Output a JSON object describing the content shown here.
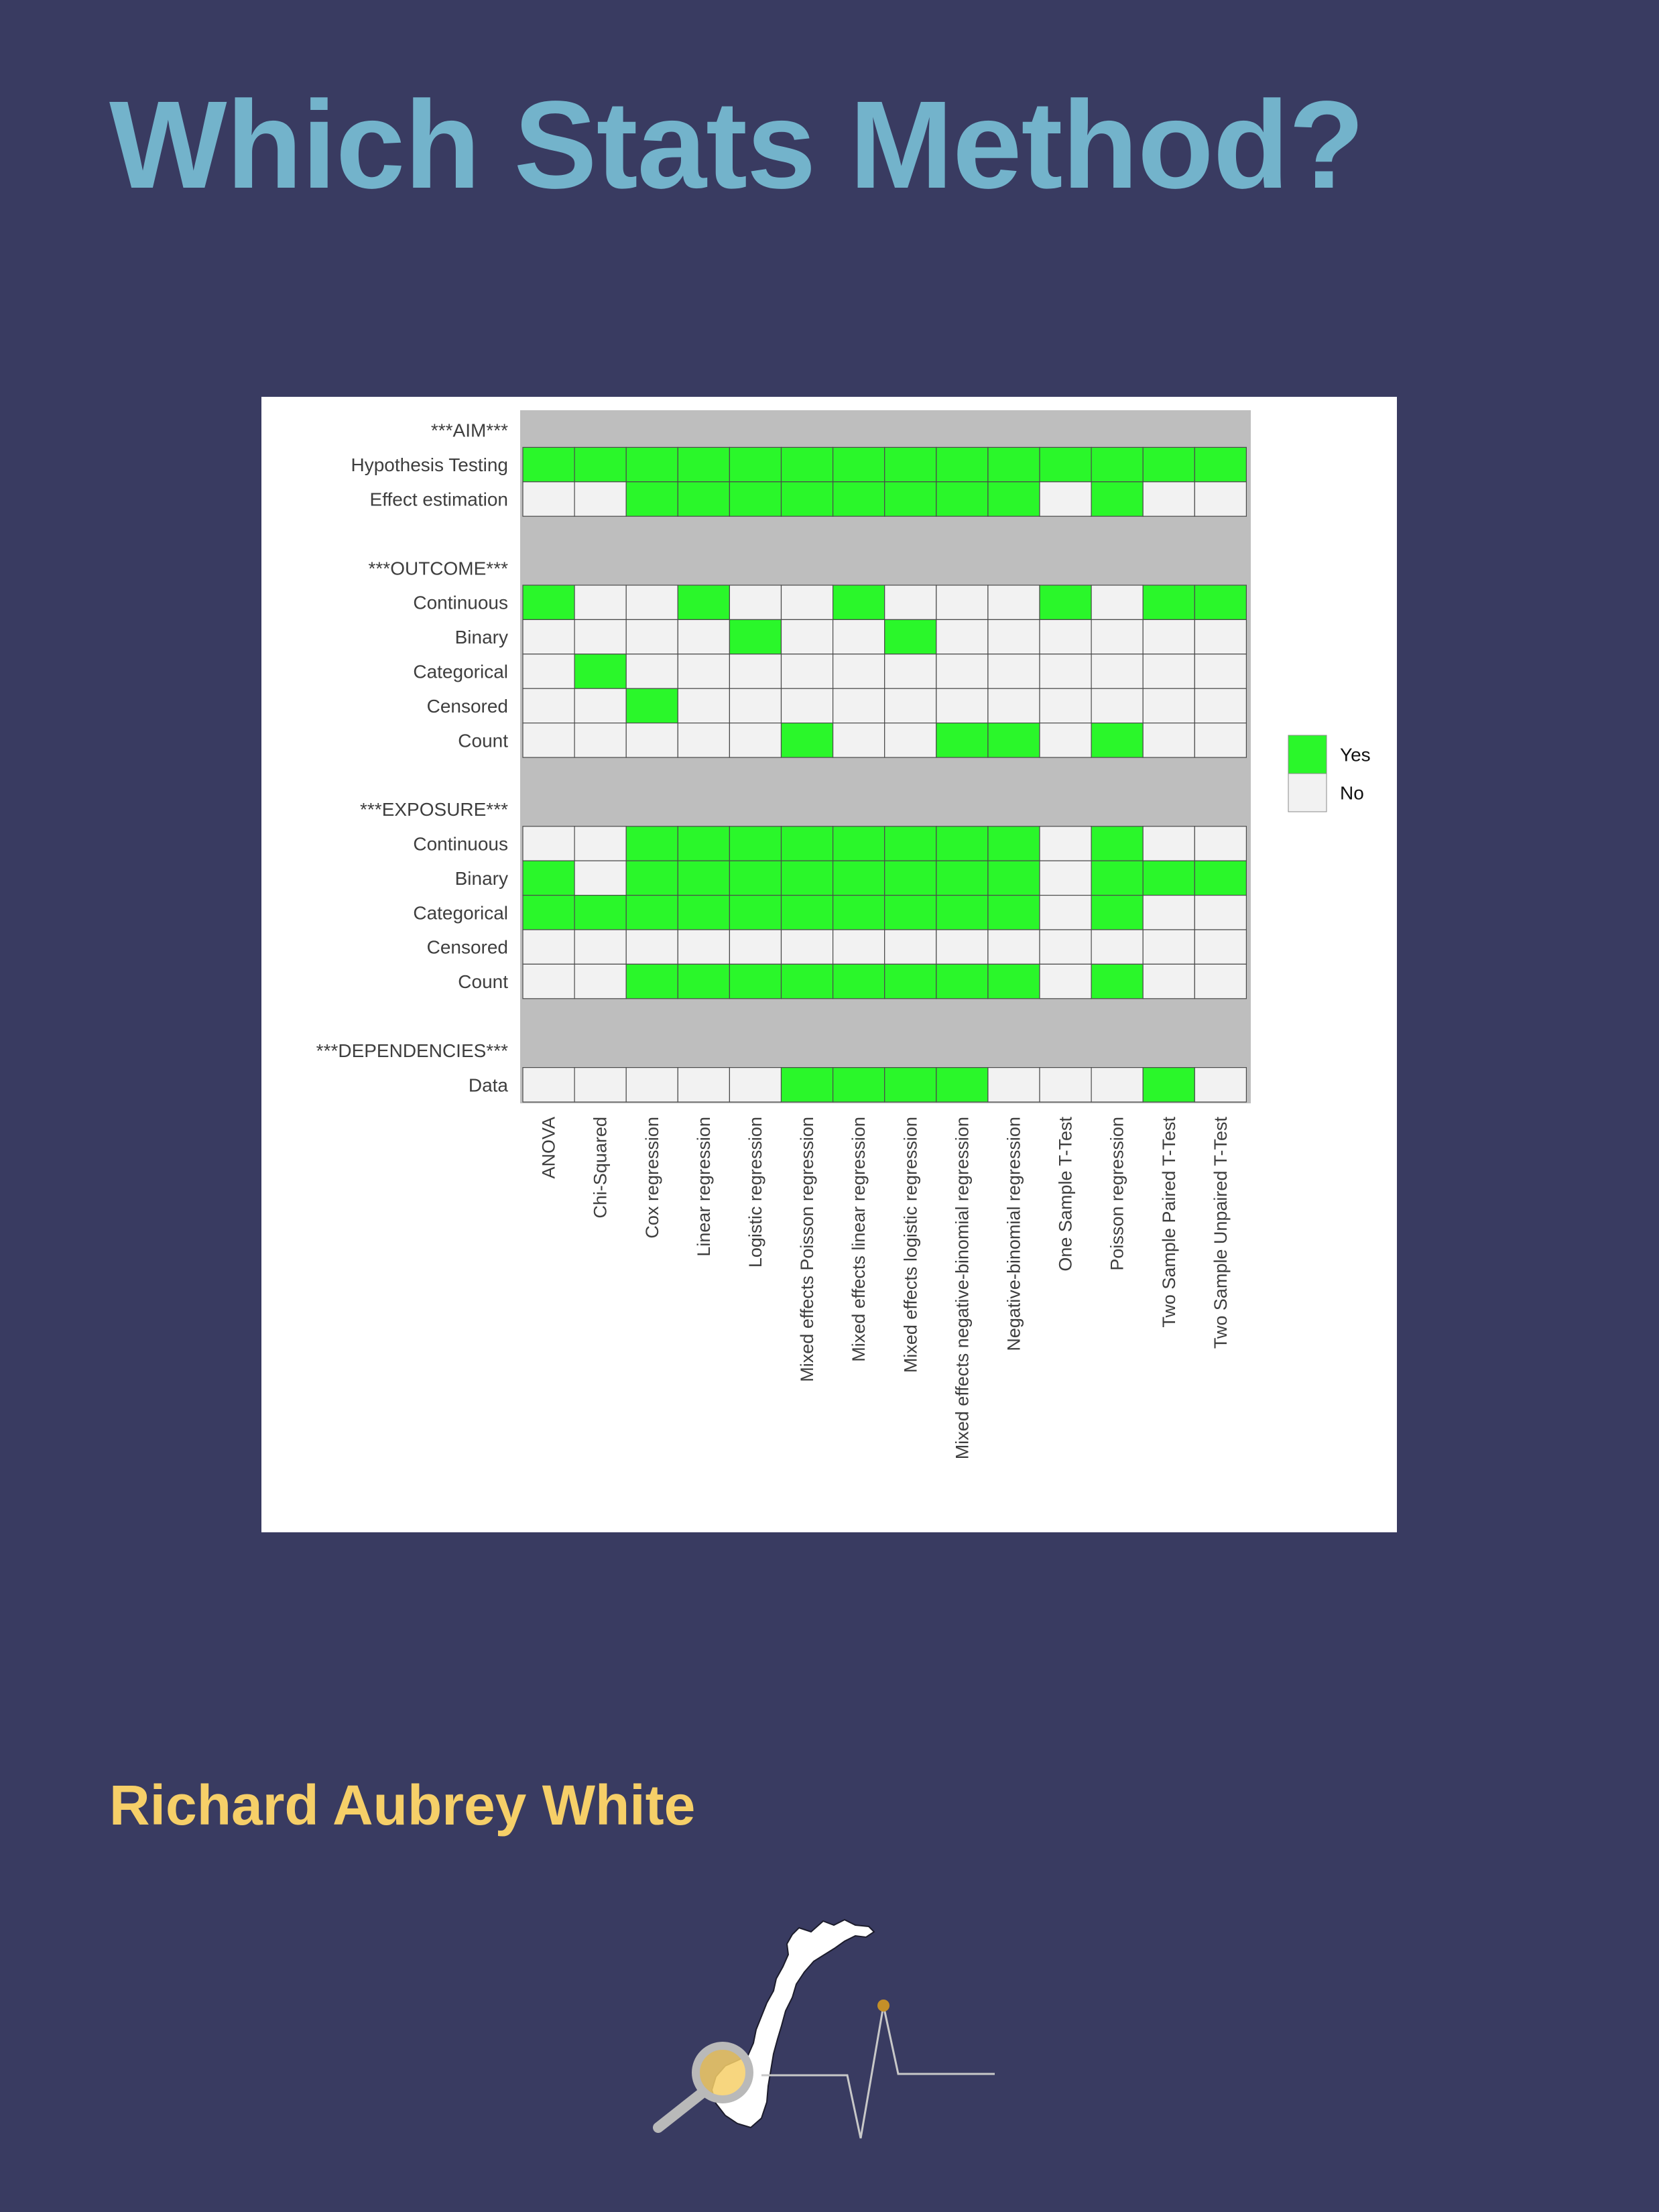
{
  "cover": {
    "title": "Which Stats Method?",
    "author": "Richard Aubrey White"
  },
  "colors": {
    "background": "#393b61",
    "title": "#73b3cb",
    "author": "#f6cf68",
    "yes": "#2af72a",
    "no": "#f2f2f2",
    "section_band": "#bebebe"
  },
  "chart_data": {
    "type": "heatmap",
    "title": "",
    "legend": {
      "position": "right",
      "entries": [
        {
          "label": "Yes",
          "color": "#2af72a"
        },
        {
          "label": "No",
          "color": "#f2f2f2"
        }
      ]
    },
    "columns": [
      "ANOVA",
      "Chi-Squared",
      "Cox regression",
      "Linear regression",
      "Logistic regression",
      "Mixed effects Poisson regression",
      "Mixed effects linear regression",
      "Mixed effects logistic regression",
      "Mixed effects negative-binomial regression",
      "Negative-binomial regression",
      "One Sample T-Test",
      "Poisson regression",
      "Two Sample Paired T-Test",
      "Two Sample Unpaired T-Test"
    ],
    "rows": [
      {
        "label": "***AIM***",
        "header": true
      },
      {
        "label": "Hypothesis Testing",
        "values": [
          1,
          1,
          1,
          1,
          1,
          1,
          1,
          1,
          1,
          1,
          1,
          1,
          1,
          1
        ]
      },
      {
        "label": "Effect estimation",
        "values": [
          0,
          0,
          1,
          1,
          1,
          1,
          1,
          1,
          1,
          1,
          0,
          1,
          0,
          0
        ]
      },
      {
        "label": "",
        "spacer": true
      },
      {
        "label": "***OUTCOME***",
        "header": true
      },
      {
        "label": "Continuous",
        "values": [
          1,
          0,
          0,
          1,
          0,
          0,
          1,
          0,
          0,
          0,
          1,
          0,
          1,
          1
        ]
      },
      {
        "label": "Binary",
        "values": [
          0,
          0,
          0,
          0,
          1,
          0,
          0,
          1,
          0,
          0,
          0,
          0,
          0,
          0
        ]
      },
      {
        "label": "Categorical",
        "values": [
          0,
          1,
          0,
          0,
          0,
          0,
          0,
          0,
          0,
          0,
          0,
          0,
          0,
          0
        ]
      },
      {
        "label": "Censored",
        "values": [
          0,
          0,
          1,
          0,
          0,
          0,
          0,
          0,
          0,
          0,
          0,
          0,
          0,
          0
        ]
      },
      {
        "label": "Count",
        "values": [
          0,
          0,
          0,
          0,
          0,
          1,
          0,
          0,
          1,
          1,
          0,
          1,
          0,
          0
        ]
      },
      {
        "label": "",
        "spacer": true
      },
      {
        "label": "***EXPOSURE***",
        "header": true
      },
      {
        "label": "Continuous",
        "values": [
          0,
          0,
          1,
          1,
          1,
          1,
          1,
          1,
          1,
          1,
          0,
          1,
          0,
          0
        ]
      },
      {
        "label": "Binary",
        "values": [
          1,
          0,
          1,
          1,
          1,
          1,
          1,
          1,
          1,
          1,
          0,
          1,
          1,
          1
        ]
      },
      {
        "label": "Categorical",
        "values": [
          1,
          1,
          1,
          1,
          1,
          1,
          1,
          1,
          1,
          1,
          0,
          1,
          0,
          0
        ]
      },
      {
        "label": "Censored",
        "values": [
          0,
          0,
          0,
          0,
          0,
          0,
          0,
          0,
          0,
          0,
          0,
          0,
          0,
          0
        ]
      },
      {
        "label": "Count",
        "values": [
          0,
          0,
          1,
          1,
          1,
          1,
          1,
          1,
          1,
          1,
          0,
          1,
          0,
          0
        ]
      },
      {
        "label": "",
        "spacer": true
      },
      {
        "label": "***DEPENDENCIES***",
        "header": true
      },
      {
        "label": "Data",
        "values": [
          0,
          0,
          0,
          0,
          0,
          1,
          1,
          1,
          1,
          0,
          0,
          0,
          1,
          0
        ]
      }
    ]
  }
}
